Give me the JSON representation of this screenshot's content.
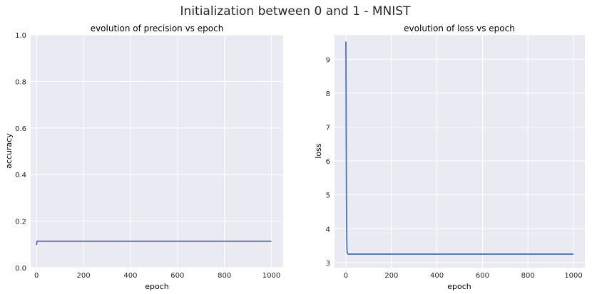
{
  "suptitle": "Initialization between 0 and 1 - MNIST",
  "colors": {
    "background": "#eaeaf2",
    "grid": "#ffffff",
    "line": "#4c72b0",
    "text": "#262626"
  },
  "chart_data": [
    {
      "type": "line",
      "title": "evolution of precision vs epoch",
      "xlabel": "epoch",
      "ylabel": "accuracy",
      "xlim": [
        -25,
        1050
      ],
      "ylim": [
        0.0,
        1.0
      ],
      "xticks": [
        "0",
        "200",
        "400",
        "600",
        "800",
        "1000"
      ],
      "yticks": [
        "0.0",
        "0.2",
        "0.4",
        "0.6",
        "0.8",
        "1.0"
      ],
      "grid": true,
      "series": [
        {
          "x": [
            0,
            1,
            2,
            3,
            5,
            10,
            100,
            1000
          ],
          "y": [
            0.098,
            0.105,
            0.112,
            0.114,
            0.1135,
            0.1135,
            0.1135,
            0.1135
          ]
        }
      ]
    },
    {
      "type": "line",
      "title": "evolution of loss vs epoch",
      "xlabel": "epoch",
      "ylabel": "loss",
      "xlim": [
        -50,
        1050
      ],
      "ylim": [
        2.85,
        9.72
      ],
      "xticks": [
        "0",
        "200",
        "400",
        "600",
        "800",
        "1000"
      ],
      "yticks": [
        "3",
        "4",
        "5",
        "6",
        "7",
        "8",
        "9"
      ],
      "grid": true,
      "series": [
        {
          "x": [
            0,
            1,
            2,
            3,
            4,
            5,
            6,
            8,
            10,
            1000
          ],
          "y": [
            9.52,
            7.8,
            5.6,
            4.2,
            3.6,
            3.35,
            3.28,
            3.26,
            3.25,
            3.25
          ]
        }
      ]
    }
  ]
}
